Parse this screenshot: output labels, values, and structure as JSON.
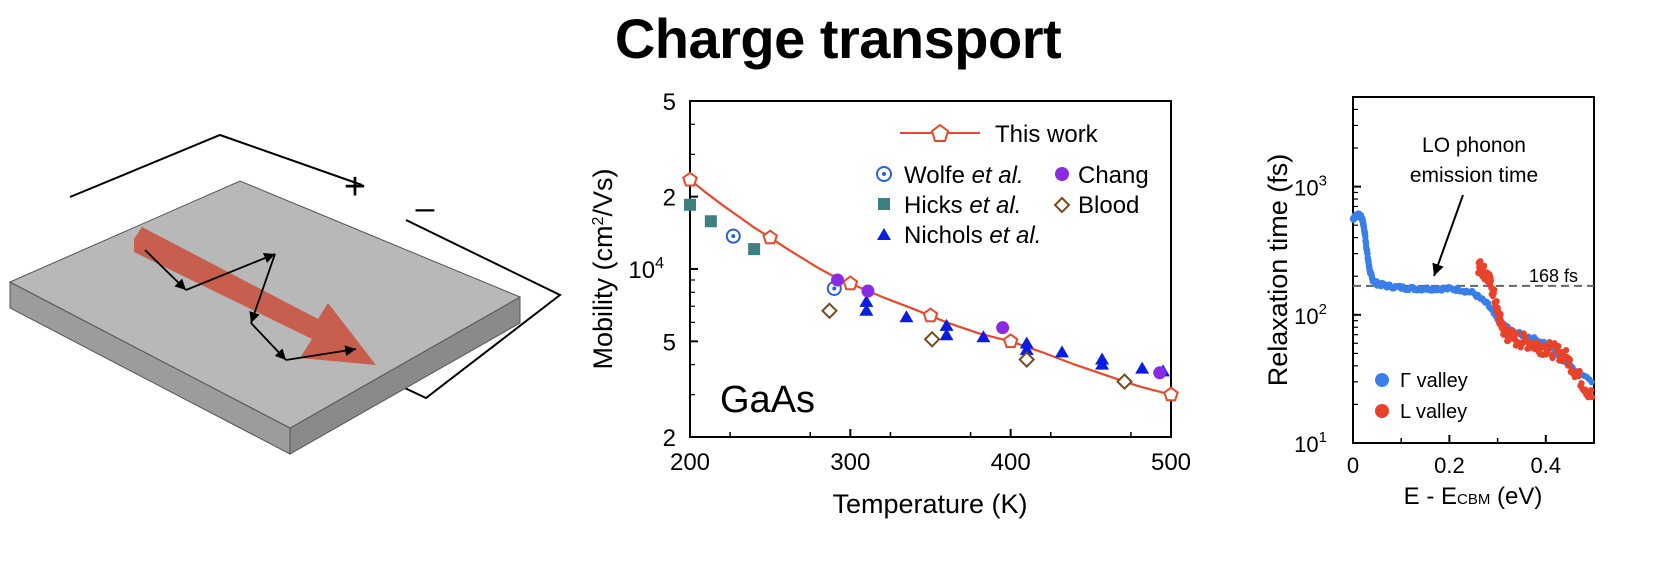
{
  "title": "Charge transport",
  "schematic": {
    "plus_label": "+",
    "minus_label": "–",
    "colors": {
      "slab_top": "#b5b5b5",
      "slab_front": "#9c9c9c",
      "slab_side": "#8a8a8a",
      "arrow": "#c85a48"
    }
  },
  "chart_data": [
    {
      "type": "scatter",
      "title": "",
      "xlabel": "Temperature (K)",
      "ylabel_main": "Mobility (cm",
      "ylabel_sup": "2",
      "ylabel_tail": "/Vs)",
      "inset_label": "GaAs",
      "xlim": [
        200,
        500
      ],
      "ylim": [
        2000,
        50000
      ],
      "y_scale": "log",
      "x_ticks": [
        {
          "v": 200,
          "label": "200"
        },
        {
          "v": 300,
          "label": "300"
        },
        {
          "v": 400,
          "label": "400"
        },
        {
          "v": 500,
          "label": "500"
        }
      ],
      "y_ticks": [
        {
          "v": 2000,
          "label": "2",
          "exp": ""
        },
        {
          "v": 5000,
          "label": "5",
          "exp": ""
        },
        {
          "v": 10000,
          "label": "10",
          "exp": "4"
        },
        {
          "v": 20000,
          "label": "2",
          "exp": ""
        },
        {
          "v": 50000,
          "label": "5",
          "exp": ""
        }
      ],
      "legend_position": "top-right",
      "series": [
        {
          "name": "This work",
          "marker": "pentagon-open",
          "line": true,
          "color": "#e8492a",
          "x": [
            200,
            250,
            300,
            350,
            400,
            500
          ],
          "y": [
            23500,
            13500,
            8700,
            6400,
            5000,
            3000
          ],
          "curve_x": [
            200,
            210,
            220,
            230,
            240,
            250,
            260,
            270,
            280,
            290,
            300,
            320,
            340,
            360,
            380,
            400,
            420,
            440,
            460,
            480,
            500
          ],
          "curve_y": [
            23500,
            20800,
            18500,
            16600,
            14900,
            13500,
            12200,
            11100,
            10100,
            9300,
            8700,
            7650,
            6800,
            6000,
            5400,
            5000,
            4500,
            4000,
            3600,
            3250,
            3000
          ]
        },
        {
          "name_main": "Wolfe ",
          "name_italic": "et al.",
          "marker": "circle-dot",
          "color": "#2b5fd4",
          "x": [
            227,
            290
          ],
          "y": [
            13700,
            8300
          ]
        },
        {
          "name_main": "Hicks ",
          "name_italic": "et al.",
          "marker": "square",
          "color": "#3e8080",
          "x": [
            200,
            213,
            240
          ],
          "y": [
            18500,
            15800,
            12100
          ]
        },
        {
          "name_main": "Nichols ",
          "name_italic": "et al.",
          "marker": "triangle",
          "color": "#0a1ee0",
          "x": [
            310,
            310,
            335,
            360,
            360,
            383,
            410,
            410,
            432,
            457,
            457,
            482,
            495
          ],
          "y": [
            7300,
            6700,
            6300,
            5800,
            5300,
            5200,
            4900,
            4600,
            4500,
            4200,
            4000,
            3850,
            3750
          ]
        },
        {
          "name": "Chang",
          "marker": "circle",
          "color": "#8a2be2",
          "x": [
            292,
            311,
            395,
            493
          ],
          "y": [
            9000,
            8100,
            5700,
            3700
          ]
        },
        {
          "name": "Blood",
          "marker": "diamond-open",
          "color": "#7b4a1a",
          "x": [
            287,
            351,
            410,
            471
          ],
          "y": [
            6700,
            5100,
            4200,
            3400
          ]
        }
      ]
    },
    {
      "type": "scatter",
      "title": "",
      "xlabel_main": "E - E",
      "xlabel_sub": "CBM",
      "xlabel_tail": " (eV)",
      "ylabel": "Relaxation time (fs)",
      "xlim": [
        0,
        0.5
      ],
      "ylim": [
        10,
        5000
      ],
      "y_scale": "log",
      "x_ticks": [
        {
          "v": 0,
          "label": "0"
        },
        {
          "v": 0.2,
          "label": "0.2"
        },
        {
          "v": 0.4,
          "label": "0.4"
        }
      ],
      "y_ticks": [
        {
          "v": 10,
          "label": "10",
          "exp": "1"
        },
        {
          "v": 100,
          "label": "10",
          "exp": "2"
        },
        {
          "v": 1000,
          "label": "10",
          "exp": "3"
        }
      ],
      "reference_line": {
        "value": 168,
        "label": "168 fs"
      },
      "annotation_lines": [
        "LO phonon",
        "emission time"
      ],
      "legend_position": "bottom-left",
      "series": [
        {
          "name": "Γ valley",
          "color": "#3a7fe8",
          "x": [
            0.0,
            0.005,
            0.01,
            0.015,
            0.02,
            0.025,
            0.03,
            0.035,
            0.04,
            0.05,
            0.07,
            0.1,
            0.13,
            0.16,
            0.19,
            0.22,
            0.25,
            0.28,
            0.3,
            0.33,
            0.36,
            0.4,
            0.45,
            0.5
          ],
          "y": [
            560,
            590,
            600,
            590,
            550,
            420,
            290,
            220,
            190,
            175,
            168,
            163,
            160,
            160,
            160,
            158,
            148,
            120,
            92,
            74,
            68,
            60,
            40,
            30
          ]
        },
        {
          "name": "L valley",
          "color": "#e8432a",
          "x": [
            0.26,
            0.27,
            0.28,
            0.29,
            0.3,
            0.31,
            0.32,
            0.34,
            0.36,
            0.38,
            0.4,
            0.42,
            0.44,
            0.46,
            0.48,
            0.5
          ],
          "y": [
            240,
            225,
            195,
            155,
            105,
            80,
            70,
            64,
            62,
            58,
            55,
            52,
            48,
            37,
            28,
            22
          ]
        }
      ]
    }
  ]
}
